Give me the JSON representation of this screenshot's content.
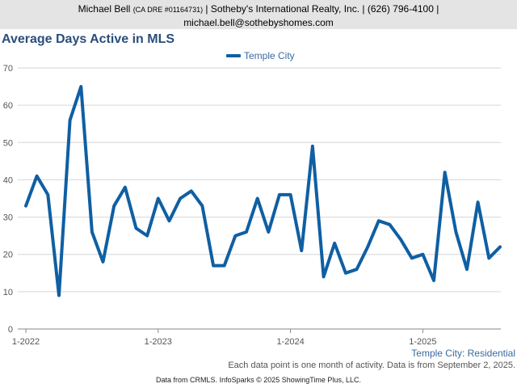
{
  "header": {
    "name": "Michael Bell",
    "dre": "(CA DRE #01164731)",
    "company_phone": "| Sotheby's International Realty, Inc. | (626) 796-4100 |",
    "email": "michael.bell@sothebyshomes.com"
  },
  "footer": {
    "series_label": "Temple City: Residential",
    "note": "Each data point is one month of activity. Data is from September 2, 2025.",
    "source": "Data from CRMLS. InfoSparks © 2025 ShowingTime Plus, LLC."
  },
  "colors": {
    "series": "#0f5fa3",
    "header_bg": "#e4e4e4",
    "title": "#2a4e7a",
    "gridline": "#d6d6d6"
  },
  "chart_data": {
    "type": "line",
    "title": "Average Days Active in MLS",
    "xlabel": "",
    "ylabel": "",
    "ylim": [
      0,
      70
    ],
    "yticks": [
      0,
      10,
      20,
      30,
      40,
      50,
      60,
      70
    ],
    "x_tick_labels": [
      "1-2022",
      "1-2023",
      "1-2024",
      "1-2025"
    ],
    "x_start": "2022-01",
    "x_end": "2025-08",
    "grid": true,
    "legend_position": "top-center",
    "series": [
      {
        "name": "Temple City",
        "values": [
          33,
          41,
          36,
          9,
          56,
          65,
          26,
          18,
          33,
          38,
          27,
          25,
          35,
          29,
          35,
          37,
          33,
          17,
          17,
          25,
          26,
          35,
          26,
          36,
          36,
          21,
          49,
          14,
          23,
          15,
          16,
          22,
          29,
          28,
          24,
          19,
          20,
          13,
          42,
          26,
          16,
          34,
          19,
          22
        ]
      }
    ]
  }
}
